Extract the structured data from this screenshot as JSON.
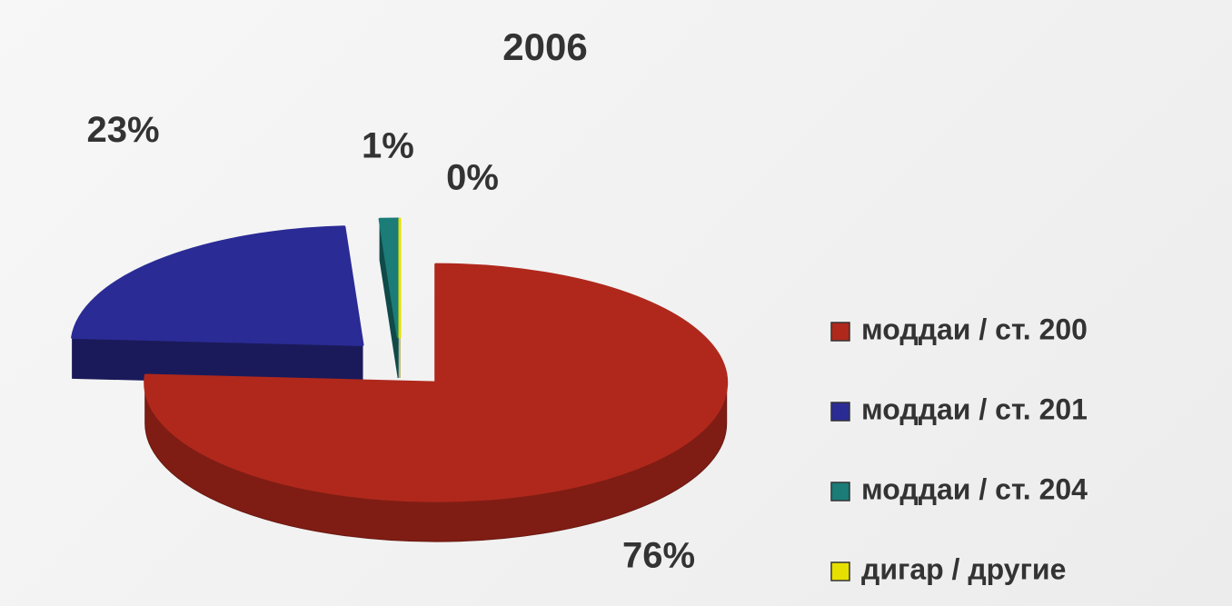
{
  "chart_data": {
    "type": "pie",
    "title": "2006",
    "categories": [
      "моддаи / ст. 200",
      "моддаи / ст. 201",
      "моддаи / ст. 204",
      "дигар / другие"
    ],
    "values": [
      76,
      23,
      1,
      0
    ],
    "value_labels": [
      "76%",
      "23%",
      "1%",
      "0%"
    ],
    "colors": [
      "#b0281c",
      "#2b2b96",
      "#1b7c78",
      "#e6e000"
    ],
    "legend": "right"
  }
}
